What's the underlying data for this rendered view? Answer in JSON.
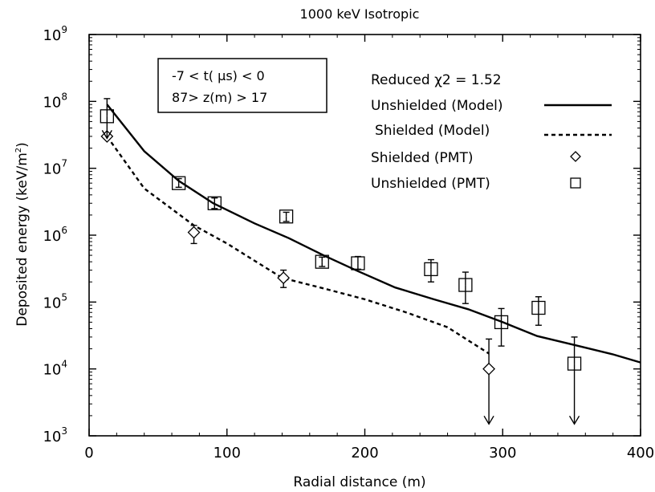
{
  "chart_data": {
    "type": "line",
    "title": "1000 keV Isotropic",
    "xlabel": "Radial distance (m)",
    "ylabel": "Deposited energy (keV/m",
    "ylabel_sup": "2",
    "ylabel_end": ")",
    "xlim": [
      0,
      400
    ],
    "ylim_log10": [
      3,
      9
    ],
    "yscale": "log",
    "x_ticks": [
      0,
      100,
      200,
      300,
      400
    ],
    "x_tick_labels": [
      "0",
      "100",
      "200",
      "300",
      "400"
    ],
    "y_ticks": [
      3,
      4,
      5,
      6,
      7,
      8,
      9
    ],
    "y_tick_base": "10",
    "y_tick_exponents": [
      "3",
      "4",
      "5",
      "6",
      "7",
      "8",
      "9"
    ],
    "annotation": {
      "line1": "-7 < t( μs) < 0",
      "line2": "87> z(m) > 17"
    },
    "legend": {
      "placement": "top-right",
      "chi2": "Reduced  χ2 = 1.52",
      "entries": [
        "Unshielded (Model)",
        "Shielded (Model)",
        "Shielded (PMT)",
        "Unshielded (PMT)"
      ]
    },
    "series": [
      {
        "name": "Unshielded (Model)",
        "style": "solid-line",
        "x": [
          13,
          40,
          65,
          90,
          120,
          145,
          170,
          195,
          222,
          250,
          275,
          300,
          325,
          355,
          380,
          400
        ],
        "y": [
          90000000,
          18000000,
          6500000,
          3000000,
          1500000,
          900000,
          500000,
          290000,
          165000,
          110000,
          78000,
          50000,
          31000,
          22000,
          16500,
          12500
        ]
      },
      {
        "name": "Shielded (Model)",
        "style": "dashed-line",
        "x": [
          13,
          40,
          76,
          100,
          140,
          170,
          200,
          230,
          260,
          290
        ],
        "y": [
          30000000,
          5000000,
          1400000,
          750000,
          230000,
          160000,
          110000,
          70000,
          42000,
          17000
        ]
      },
      {
        "name": "Shielded (PMT)",
        "style": "diamond",
        "x": [
          13,
          76,
          141,
          290
        ],
        "y": [
          30000000,
          1100000,
          230000,
          10000
        ],
        "err_low": [
          null,
          750000,
          165000,
          null
        ],
        "err_high": [
          null,
          1400000,
          300000,
          28000
        ],
        "upper_limit": [
          false,
          false,
          false,
          true
        ],
        "limit_to": [
          null,
          null,
          null,
          1500
        ]
      },
      {
        "name": "Unshielded (PMT)",
        "style": "square",
        "x": [
          13,
          65,
          91,
          143,
          169,
          195,
          248,
          273,
          299,
          326,
          352
        ],
        "y": [
          60000000,
          6000000,
          3000000,
          1900000,
          400000,
          380000,
          310000,
          180000,
          50000,
          82000,
          12000
        ],
        "err_low": [
          null,
          5200000,
          2500000,
          1600000,
          340000,
          310000,
          200000,
          95000,
          22000,
          45000,
          null
        ],
        "err_high": [
          110000000,
          7000000,
          3600000,
          2200000,
          470000,
          480000,
          430000,
          280000,
          80000,
          120000,
          30000
        ],
        "upper_limit": [
          true,
          false,
          false,
          false,
          false,
          false,
          false,
          false,
          false,
          false,
          true
        ],
        "limit_to": [
          28000000,
          null,
          null,
          null,
          null,
          null,
          null,
          null,
          null,
          null,
          1500
        ]
      }
    ]
  }
}
